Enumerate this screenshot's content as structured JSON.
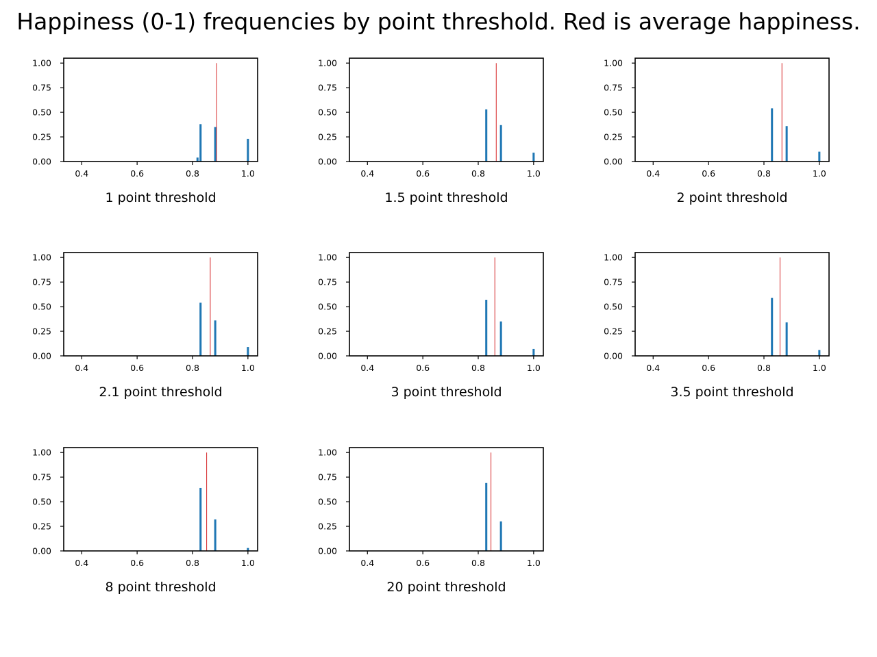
{
  "title": "Happiness (0-1) frequencies by point threshold. Red is average happiness.",
  "colors": {
    "bar": "#1f77b4",
    "mean_line": "#d62728",
    "axes": "#000000"
  },
  "chart_data": [
    {
      "type": "bar",
      "xlabel": "1 point threshold",
      "xlim": [
        0.335,
        1.035
      ],
      "ylim": [
        0,
        1.05
      ],
      "xticks": [
        "0.4",
        "0.6",
        "0.8",
        "1.0"
      ],
      "yticks": [
        "0.00",
        "0.25",
        "0.50",
        "0.75",
        "1.00"
      ],
      "bars": [
        {
          "x": 0.818,
          "value": 0.04
        },
        {
          "x": 0.829,
          "value": 0.38
        },
        {
          "x": 0.882,
          "value": 0.35
        },
        {
          "x": 1.0,
          "value": 0.23
        }
      ],
      "average": 0.887
    },
    {
      "type": "bar",
      "xlabel": "1.5 point threshold",
      "xlim": [
        0.335,
        1.035
      ],
      "ylim": [
        0,
        1.05
      ],
      "xticks": [
        "0.4",
        "0.6",
        "0.8",
        "1.0"
      ],
      "yticks": [
        "0.00",
        "0.25",
        "0.50",
        "0.75",
        "1.00"
      ],
      "bars": [
        {
          "x": 0.829,
          "value": 0.53
        },
        {
          "x": 0.882,
          "value": 0.37
        },
        {
          "x": 1.0,
          "value": 0.09
        }
      ],
      "average": 0.865
    },
    {
      "type": "bar",
      "xlabel": "2 point threshold",
      "xlim": [
        0.335,
        1.035
      ],
      "ylim": [
        0,
        1.05
      ],
      "xticks": [
        "0.4",
        "0.6",
        "0.8",
        "1.0"
      ],
      "yticks": [
        "0.00",
        "0.25",
        "0.50",
        "0.75",
        "1.00"
      ],
      "bars": [
        {
          "x": 0.829,
          "value": 0.54
        },
        {
          "x": 0.882,
          "value": 0.36
        },
        {
          "x": 1.0,
          "value": 0.1
        }
      ],
      "average": 0.865
    },
    {
      "type": "bar",
      "xlabel": "2.1 point threshold",
      "xlim": [
        0.335,
        1.035
      ],
      "ylim": [
        0,
        1.05
      ],
      "xticks": [
        "0.4",
        "0.6",
        "0.8",
        "1.0"
      ],
      "yticks": [
        "0.00",
        "0.25",
        "0.50",
        "0.75",
        "1.00"
      ],
      "bars": [
        {
          "x": 0.829,
          "value": 0.54
        },
        {
          "x": 0.882,
          "value": 0.36
        },
        {
          "x": 1.0,
          "value": 0.09
        }
      ],
      "average": 0.864
    },
    {
      "type": "bar",
      "xlabel": "3 point threshold",
      "xlim": [
        0.335,
        1.035
      ],
      "ylim": [
        0,
        1.05
      ],
      "xticks": [
        "0.4",
        "0.6",
        "0.8",
        "1.0"
      ],
      "yticks": [
        "0.00",
        "0.25",
        "0.50",
        "0.75",
        "1.00"
      ],
      "bars": [
        {
          "x": 0.829,
          "value": 0.57
        },
        {
          "x": 0.882,
          "value": 0.35
        },
        {
          "x": 1.0,
          "value": 0.07
        }
      ],
      "average": 0.86
    },
    {
      "type": "bar",
      "xlabel": "3.5 point threshold",
      "xlim": [
        0.335,
        1.035
      ],
      "ylim": [
        0,
        1.05
      ],
      "xticks": [
        "0.4",
        "0.6",
        "0.8",
        "1.0"
      ],
      "yticks": [
        "0.00",
        "0.25",
        "0.50",
        "0.75",
        "1.00"
      ],
      "bars": [
        {
          "x": 0.829,
          "value": 0.59
        },
        {
          "x": 0.882,
          "value": 0.34
        },
        {
          "x": 1.0,
          "value": 0.06
        }
      ],
      "average": 0.858
    },
    {
      "type": "bar",
      "xlabel": "8 point threshold",
      "xlim": [
        0.335,
        1.035
      ],
      "ylim": [
        0,
        1.05
      ],
      "xticks": [
        "0.4",
        "0.6",
        "0.8",
        "1.0"
      ],
      "yticks": [
        "0.00",
        "0.25",
        "0.50",
        "0.75",
        "1.00"
      ],
      "bars": [
        {
          "x": 0.829,
          "value": 0.64
        },
        {
          "x": 0.882,
          "value": 0.32
        },
        {
          "x": 1.0,
          "value": 0.03
        }
      ],
      "average": 0.851
    },
    {
      "type": "bar",
      "xlabel": "20 point threshold",
      "xlim": [
        0.335,
        1.035
      ],
      "ylim": [
        0,
        1.05
      ],
      "xticks": [
        "0.4",
        "0.6",
        "0.8",
        "1.0"
      ],
      "yticks": [
        "0.00",
        "0.25",
        "0.50",
        "0.75",
        "1.00"
      ],
      "bars": [
        {
          "x": 0.829,
          "value": 0.69
        },
        {
          "x": 0.882,
          "value": 0.3
        },
        {
          "x": 1.0,
          "value": 0.005
        }
      ],
      "average": 0.846
    }
  ]
}
